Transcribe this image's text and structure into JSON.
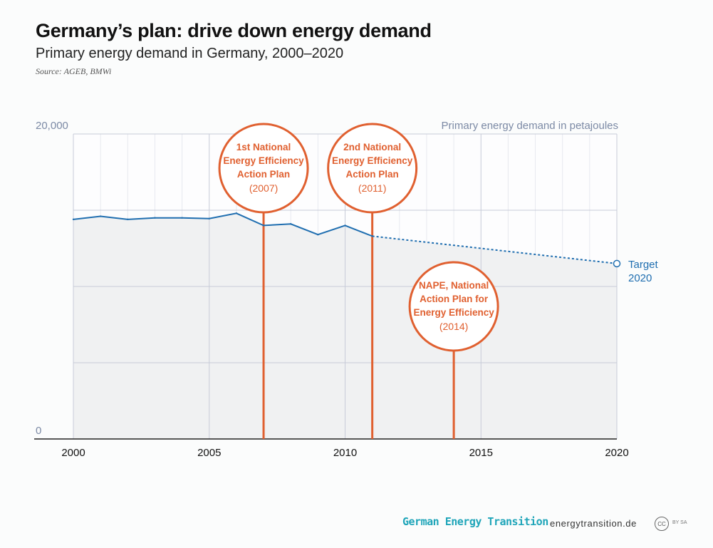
{
  "header": {
    "title": "Germany’s plan: drive down energy demand",
    "subtitle": "Primary energy demand in Germany, 2000–2020",
    "source": "Source: AGEB, BMWi"
  },
  "footer": {
    "brand": "German Energy Transition",
    "site": "energytransition.de",
    "cc_label": "CC",
    "cc_suffix": "BY SA"
  },
  "colors": {
    "series": "#1f6eb0",
    "milestone": "#e06030",
    "area": "#f0f1f2",
    "grid": "#c7cbd8",
    "axis_label": "#7c8aa5"
  },
  "chart_data": {
    "type": "line",
    "title": "Germany’s plan: drive down energy demand",
    "subtitle": "Primary energy demand in Germany, 2000–2020",
    "ylabel": "Primary energy demand in petajoules",
    "xlim": [
      2000,
      2020
    ],
    "ylim": [
      0,
      20000
    ],
    "x_ticks": [
      2000,
      2005,
      2010,
      2015,
      2020
    ],
    "y_tick_labels": [
      {
        "value": 20000,
        "label": "20,000"
      },
      {
        "value": 0,
        "label": "0"
      }
    ],
    "y_gridlines": [
      0,
      5000,
      10000,
      15000,
      20000
    ],
    "grid": true,
    "series": [
      {
        "x": [
          2000,
          2001,
          2002,
          2003,
          2004,
          2005,
          2006,
          2007,
          2008,
          2009,
          2010,
          2011
        ],
        "values": [
          14400,
          14600,
          14400,
          14500,
          14500,
          14450,
          14800,
          14000,
          14100,
          13400,
          14000,
          13300
        ]
      }
    ],
    "projection": {
      "x": [
        2011,
        2020
      ],
      "values": [
        13300,
        11500
      ]
    },
    "target": {
      "x": 2020,
      "value": 11500,
      "label": [
        "Target",
        "2020"
      ]
    },
    "milestones": [
      {
        "x": 2007,
        "lines": [
          "1st National",
          "Energy Efficiency",
          "Action Plan"
        ],
        "year_label": "(2007)"
      },
      {
        "x": 2011,
        "lines": [
          "2nd National",
          "Energy Efficiency",
          "Action Plan"
        ],
        "year_label": "(2011)"
      },
      {
        "x": 2014,
        "lines": [
          "NAPE, National",
          "Action Plan for",
          "Energy Efficiency"
        ],
        "year_label": "(2014)"
      }
    ]
  }
}
